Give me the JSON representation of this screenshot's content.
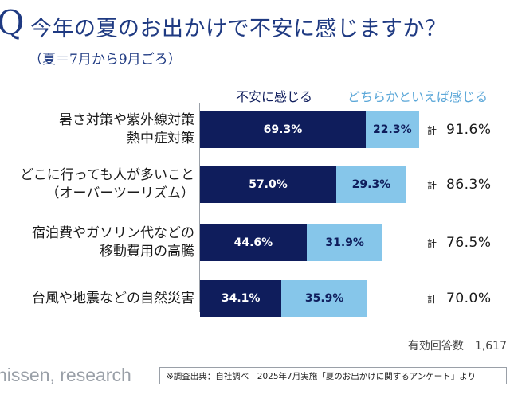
{
  "header": {
    "q_mark": "Q",
    "title": "今年の夏のお出かけで不安に感じますか？",
    "subtitle": "（夏＝7月から9月ごろ）"
  },
  "chart_data": {
    "type": "bar",
    "orientation": "horizontal",
    "stacked": true,
    "categories": [
      [
        "暑さ対策や紫外線対策",
        "熱中症対策"
      ],
      [
        "どこに行っても人が多いこと",
        "（オーバーツーリズム）"
      ],
      [
        "宿泊費やガソリン代などの",
        "移動費用の高騰"
      ],
      [
        "台風や地震などの自然災害"
      ]
    ],
    "series": [
      {
        "name": "不安に感じる",
        "color": "#0f1d5c",
        "values": [
          69.3,
          57.0,
          44.6,
          34.1
        ],
        "labels": [
          "69.3%",
          "57.0%",
          "44.6%",
          "34.1%"
        ]
      },
      {
        "name": "どちらかといえば感じる",
        "color": "#86c6ea",
        "values": [
          22.3,
          29.3,
          31.9,
          35.9
        ],
        "labels": [
          "22.3%",
          "29.3%",
          "31.9%",
          "35.9%"
        ]
      }
    ],
    "totals": {
      "prefix": "計",
      "labels": [
        "91.6%",
        "86.3%",
        "76.5%",
        "70.0%"
      ]
    },
    "xlim": [
      0,
      100
    ],
    "grid": false,
    "legend": "top"
  },
  "footer": {
    "sample_size": "有効回答数　1,617",
    "brand": "nissen, research",
    "source": "※調査出典：自社調べ　2025年7月実施「夏のお出かけに関するアンケート」より"
  }
}
